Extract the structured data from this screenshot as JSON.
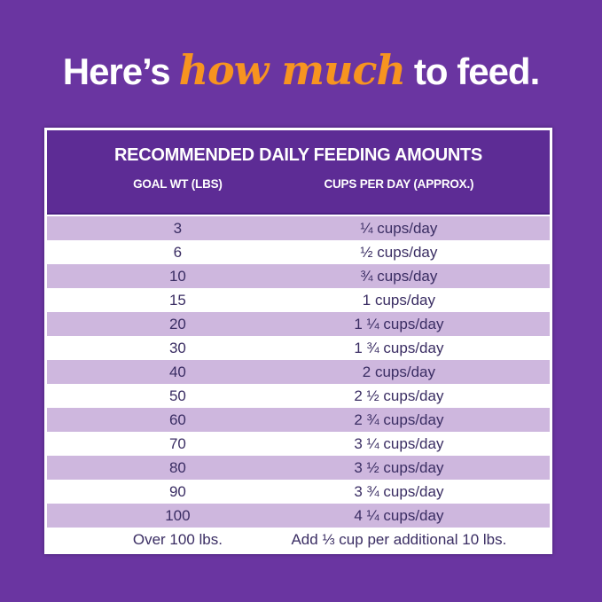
{
  "colors": {
    "background": "#6A35A1",
    "card_header_bg": "#5D2C95",
    "card_border": "#FFFFFF",
    "divider_dark": "#4B2182",
    "row_alt_bg": "#CEB7DE",
    "row_bg": "#FFFFFF",
    "row_text": "#3A2D63",
    "headline_text": "#FFFFFF",
    "highlight_color": "#F79420"
  },
  "headline": {
    "prefix": "Here’s",
    "highlight": "how much",
    "suffix": "to feed."
  },
  "table": {
    "title": "RECOMMENDED DAILY FEEDING AMOUNTS",
    "columns": [
      "GOAL WT (LBS)",
      "CUPS PER DAY (APPROX.)"
    ],
    "rows": [
      {
        "goal_wt": "3",
        "cups": "¼ cups/day"
      },
      {
        "goal_wt": "6",
        "cups": "½ cups/day"
      },
      {
        "goal_wt": "10",
        "cups": "¾ cups/day"
      },
      {
        "goal_wt": "15",
        "cups": "1 cups/day"
      },
      {
        "goal_wt": "20",
        "cups": "1 ¼ cups/day"
      },
      {
        "goal_wt": "30",
        "cups": "1 ¾ cups/day"
      },
      {
        "goal_wt": "40",
        "cups": "2 cups/day"
      },
      {
        "goal_wt": "50",
        "cups": "2 ½ cups/day"
      },
      {
        "goal_wt": "60",
        "cups": "2 ¾ cups/day"
      },
      {
        "goal_wt": "70",
        "cups": "3 ¼ cups/day"
      },
      {
        "goal_wt": "80",
        "cups": "3 ½ cups/day"
      },
      {
        "goal_wt": "90",
        "cups": "3 ¾ cups/day"
      },
      {
        "goal_wt": "100",
        "cups": "4 ¼ cups/day"
      },
      {
        "goal_wt": "Over 100 lbs.",
        "cups": "Add ⅓ cup per additional 10 lbs."
      }
    ]
  },
  "chart_data": {
    "type": "table",
    "title": "RECOMMENDED DAILY FEEDING AMOUNTS",
    "columns": [
      "GOAL WT (LBS)",
      "CUPS PER DAY (APPROX.)"
    ],
    "rows": [
      [
        "3",
        "1/4 cups/day"
      ],
      [
        "6",
        "1/2 cups/day"
      ],
      [
        "10",
        "3/4 cups/day"
      ],
      [
        "15",
        "1 cups/day"
      ],
      [
        "20",
        "1 1/4 cups/day"
      ],
      [
        "30",
        "1 3/4 cups/day"
      ],
      [
        "40",
        "2 cups/day"
      ],
      [
        "50",
        "2 1/2 cups/day"
      ],
      [
        "60",
        "2 3/4 cups/day"
      ],
      [
        "70",
        "3 1/4 cups/day"
      ],
      [
        "80",
        "3 1/2 cups/day"
      ],
      [
        "90",
        "3 3/4 cups/day"
      ],
      [
        "100",
        "4 1/4 cups/day"
      ],
      [
        "Over 100 lbs.",
        "Add 1/3 cup per additional 10 lbs."
      ]
    ],
    "goal_weights_lbs": [
      3,
      6,
      10,
      15,
      20,
      30,
      40,
      50,
      60,
      70,
      80,
      90,
      100
    ],
    "cups_per_day": [
      0.25,
      0.5,
      0.75,
      1,
      1.25,
      1.75,
      2,
      2.5,
      2.75,
      3.25,
      3.5,
      3.75,
      4.25
    ],
    "over_100_rule": "Add 1/3 cup per additional 10 lbs."
  }
}
